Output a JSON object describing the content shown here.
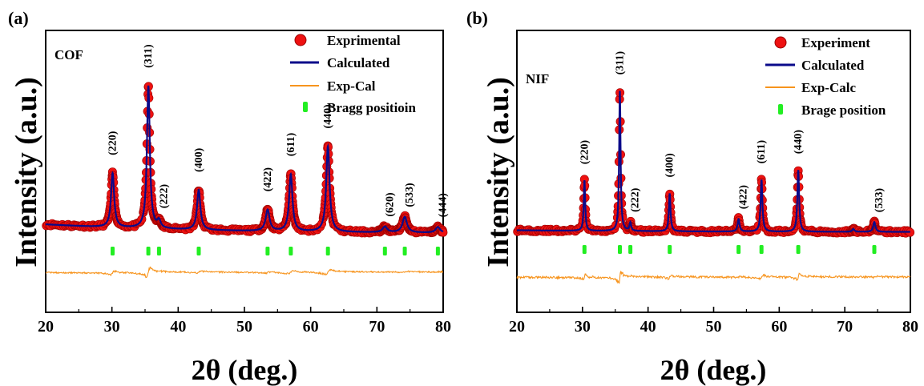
{
  "chart_data": [
    {
      "type": "line",
      "panel_label": "(a)",
      "sample_label": "COF",
      "xlabel": "2θ (deg.)",
      "ylabel": "Intensity (a.u.)",
      "xlim": [
        20,
        80
      ],
      "xticks": [
        20,
        30,
        40,
        50,
        60,
        70,
        80
      ],
      "y_ticks_shown": false,
      "legend_position": "top-right",
      "legend": [
        "Exprimental",
        "Calculated",
        "Exp-Cal",
        "Bragg positioin"
      ],
      "colors": {
        "experimental": "#ee1111",
        "calculated": "#0a0a8a",
        "difference": "#f7941d",
        "bragg": "#22ee22"
      },
      "background_level": 0.1,
      "peaks": [
        {
          "x": 30.1,
          "height": 0.38,
          "width": 0.28,
          "hkl": "(220)"
        },
        {
          "x": 35.5,
          "height": 1.0,
          "width": 0.26,
          "hkl": "(311)"
        },
        {
          "x": 37.1,
          "height": 0.05,
          "width": 0.3,
          "hkl": "(222)"
        },
        {
          "x": 43.1,
          "height": 0.28,
          "width": 0.3,
          "hkl": "(400)"
        },
        {
          "x": 53.5,
          "height": 0.15,
          "width": 0.35,
          "hkl": "(422)"
        },
        {
          "x": 57.0,
          "height": 0.4,
          "width": 0.3,
          "hkl": "(611)"
        },
        {
          "x": 62.6,
          "height": 0.6,
          "width": 0.3,
          "hkl": "(440)"
        },
        {
          "x": 71.2,
          "height": 0.04,
          "width": 0.4,
          "hkl": "(620)"
        },
        {
          "x": 74.2,
          "height": 0.11,
          "width": 0.4,
          "hkl": "(533)"
        },
        {
          "x": 79.2,
          "height": 0.04,
          "width": 0.4,
          "hkl": "(444)"
        }
      ],
      "bragg_positions": [
        30.1,
        35.5,
        37.1,
        43.1,
        53.5,
        57.0,
        62.6,
        71.2,
        74.2,
        79.2
      ]
    },
    {
      "type": "line",
      "panel_label": "(b)",
      "sample_label": "NIF",
      "xlabel": "2θ (deg.)",
      "ylabel": "Intensity (a.u.)",
      "xlim": [
        20,
        80
      ],
      "xticks": [
        20,
        30,
        40,
        50,
        60,
        70,
        80
      ],
      "y_ticks_shown": false,
      "legend_position": "top-right",
      "legend": [
        "Experiment",
        "Calculated",
        "Exp-Calc",
        "Brage position"
      ],
      "colors": {
        "experimental": "#ee1111",
        "calculated": "#0a0a8a",
        "difference": "#f7941d",
        "bragg": "#22ee22"
      },
      "background_level": 0.02,
      "peaks": [
        {
          "x": 30.3,
          "height": 0.36,
          "width": 0.13,
          "hkl": "(220)"
        },
        {
          "x": 35.7,
          "height": 1.0,
          "width": 0.13,
          "hkl": "(311)"
        },
        {
          "x": 37.3,
          "height": 0.06,
          "width": 0.15,
          "hkl": "(222)"
        },
        {
          "x": 43.3,
          "height": 0.27,
          "width": 0.15,
          "hkl": "(400)"
        },
        {
          "x": 53.8,
          "height": 0.09,
          "width": 0.18,
          "hkl": "(422)"
        },
        {
          "x": 57.3,
          "height": 0.37,
          "width": 0.16,
          "hkl": "(611)"
        },
        {
          "x": 62.9,
          "height": 0.44,
          "width": 0.16,
          "hkl": "(440)"
        },
        {
          "x": 71.3,
          "height": 0.02,
          "width": 0.2,
          "hkl": ""
        },
        {
          "x": 74.5,
          "height": 0.07,
          "width": 0.2,
          "hkl": "(533)"
        }
      ],
      "bragg_positions": [
        30.3,
        35.7,
        37.3,
        43.3,
        53.8,
        57.3,
        62.9,
        74.5
      ]
    }
  ]
}
